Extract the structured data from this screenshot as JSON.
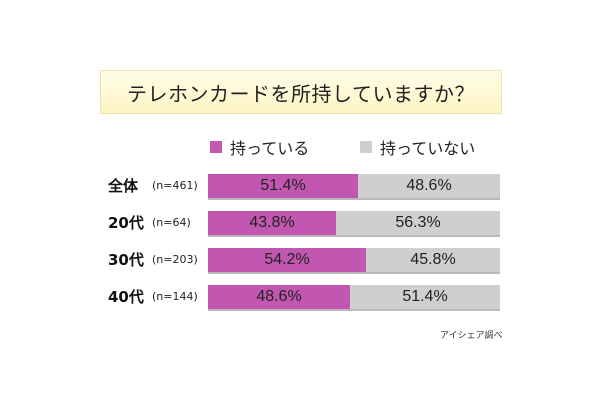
{
  "title": "テレホンカードを所持していますか？",
  "legend": {
    "owned": "持っている",
    "not_owned": "持っていない"
  },
  "colors": {
    "owned": "#c157b0",
    "not_owned": "#cfcfcf"
  },
  "source": "アイシェア調べ",
  "chart_data": {
    "type": "bar",
    "orientation": "horizontal",
    "stacked": true,
    "normalized_100": true,
    "categories": [
      "全体",
      "20代",
      "30代",
      "40代"
    ],
    "sample_sizes": [
      "(n=461)",
      "(n=64)",
      "(n=203)",
      "(n=144)"
    ],
    "series": [
      {
        "name": "持っている",
        "values": [
          51.4,
          43.8,
          54.2,
          48.6
        ],
        "labels": [
          "51.4%",
          "43.8%",
          "54.2%",
          "48.6%"
        ]
      },
      {
        "name": "持っていない",
        "values": [
          48.6,
          56.3,
          45.8,
          51.4
        ],
        "labels": [
          "48.6%",
          "56.3%",
          "45.8%",
          "51.4%"
        ]
      }
    ],
    "title": "テレホンカードを所持していますか？",
    "legend_position": "top",
    "grid": false
  }
}
